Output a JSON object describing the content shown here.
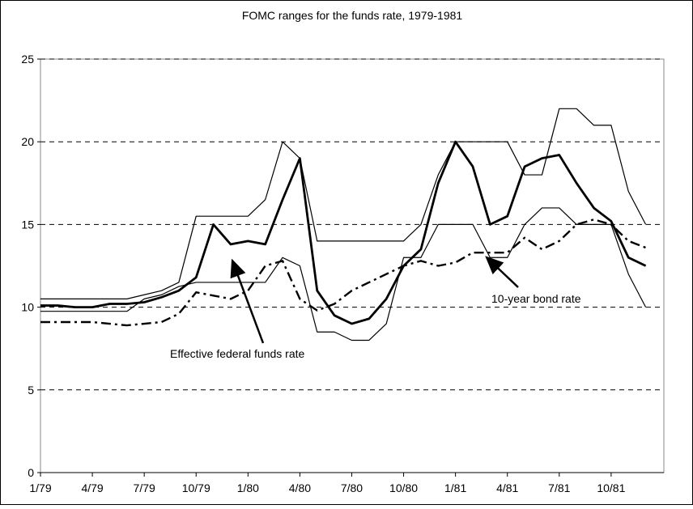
{
  "chart_data": {
    "type": "line",
    "title": "FOMC ranges for the funds rate, 1979-1981",
    "categories": [
      "1/79",
      null,
      null,
      "4/79",
      null,
      null,
      "7/79",
      null,
      null,
      "10/79",
      null,
      null,
      "1/80",
      null,
      null,
      "4/80",
      null,
      null,
      "7/80",
      null,
      null,
      "10/80",
      null,
      null,
      "1/81",
      null,
      null,
      "4/81",
      null,
      null,
      "7/81",
      null,
      null,
      "10/81",
      null,
      null
    ],
    "series": [
      {
        "color": "#000000",
        "style": "thin",
        "values": [
          10.5,
          10.5,
          10.5,
          10.5,
          10.5,
          10.5,
          10.75,
          11,
          11.5,
          15.5,
          15.5,
          15.5,
          15.5,
          16.5,
          20,
          19,
          14,
          14,
          14,
          14,
          14,
          14,
          15,
          18,
          20,
          20,
          20,
          20,
          18,
          18,
          22,
          22,
          21,
          21,
          17,
          15
        ]
      },
      {
        "color": "#000000",
        "style": "thin",
        "values": [
          9.75,
          9.75,
          9.75,
          9.75,
          9.75,
          9.75,
          10.5,
          10.75,
          11.25,
          11.5,
          11.5,
          11.5,
          11.5,
          11.5,
          13,
          12.5,
          8.5,
          8.5,
          8,
          8,
          9,
          13,
          13,
          15,
          15,
          15,
          13,
          13,
          15,
          16,
          16,
          15,
          15,
          15,
          12,
          10
        ]
      },
      {
        "name": "Effective federal funds rate",
        "color": "#000000",
        "style": "thick",
        "values": [
          10.1,
          10.1,
          10.0,
          10.0,
          10.2,
          10.2,
          10.3,
          10.6,
          11.0,
          11.8,
          15.0,
          13.8,
          14.0,
          13.8,
          16.5,
          19.0,
          11.0,
          9.5,
          9.0,
          9.3,
          10.5,
          12.5,
          13.5,
          17.5,
          20.0,
          18.5,
          15.0,
          15.5,
          18.5,
          19.0,
          19.2,
          17.5,
          16.0,
          15.2,
          13.0,
          12.5
        ]
      },
      {
        "name": "10-year bond rate",
        "color": "#000000",
        "style": "dashdot",
        "values": [
          9.1,
          9.1,
          9.1,
          9.1,
          9.0,
          8.9,
          9.0,
          9.1,
          9.6,
          10.9,
          10.7,
          10.5,
          11.0,
          12.5,
          12.8,
          10.5,
          9.8,
          10.2,
          11.0,
          11.5,
          12.0,
          12.5,
          12.8,
          12.5,
          12.7,
          13.3,
          13.3,
          13.3,
          14.2,
          13.5,
          14.0,
          15.0,
          15.3,
          15.0,
          14.0,
          13.6
        ]
      }
    ],
    "ylim": [
      0,
      25
    ],
    "yticks": [
      0,
      5,
      10,
      15,
      20,
      25
    ],
    "grid": true
  }
}
